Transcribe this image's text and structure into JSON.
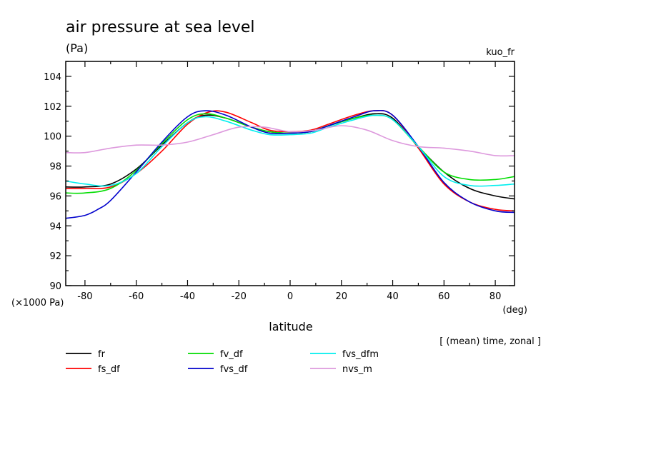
{
  "chart_data": {
    "type": "line",
    "title": "air pressure at sea level",
    "unit_label": "(Pa)",
    "run_label": "kuo_fr",
    "scale_label": "(×1000 Pa)",
    "xlabel": "latitude",
    "xunit": "(deg)",
    "subtitle": "[ (mean) time, zonal ]",
    "xlim": [
      -87.5,
      87.5
    ],
    "ylim": [
      90,
      105
    ],
    "xticks": [
      -80,
      -60,
      -40,
      -20,
      0,
      20,
      40,
      60,
      80
    ],
    "xtick_labels": [
      "-80",
      "-60",
      "-40",
      "-20",
      "0",
      "20",
      "40",
      "60",
      "80"
    ],
    "yticks": [
      90,
      92,
      94,
      96,
      98,
      100,
      102,
      104
    ],
    "ytick_labels": [
      "90",
      "92",
      "94",
      "96",
      "98",
      "100",
      "102",
      "104"
    ],
    "grid": false,
    "legend_position": "bottom",
    "series": [
      {
        "name": "fr",
        "color": "#000000",
        "x": [
          -87.5,
          -80,
          -70,
          -60,
          -50,
          -40,
          -33,
          -25,
          -15,
          -8,
          0,
          8,
          15,
          25,
          33,
          40,
          50,
          60,
          70,
          80,
          87.5
        ],
        "y": [
          96.6,
          96.6,
          96.8,
          97.8,
          99.4,
          100.9,
          101.4,
          101.2,
          100.6,
          100.3,
          100.2,
          100.3,
          100.7,
          101.2,
          101.5,
          101.2,
          99.3,
          97.6,
          96.5,
          96.0,
          95.8
        ]
      },
      {
        "name": "fs_df",
        "color": "#ff0000",
        "x": [
          -87.5,
          -80,
          -70,
          -60,
          -50,
          -40,
          -32,
          -25,
          -15,
          -8,
          0,
          8,
          15,
          25,
          33,
          40,
          50,
          60,
          70,
          80,
          87.5
        ],
        "y": [
          96.5,
          96.5,
          96.6,
          97.5,
          99.0,
          100.8,
          101.6,
          101.6,
          100.9,
          100.4,
          100.3,
          100.4,
          100.8,
          101.4,
          101.7,
          101.4,
          99.2,
          96.8,
          95.6,
          95.1,
          95.0
        ]
      },
      {
        "name": "fv_df",
        "color": "#00dd00",
        "x": [
          -87.5,
          -80,
          -70,
          -60,
          -50,
          -40,
          -33,
          -25,
          -15,
          -8,
          0,
          8,
          15,
          25,
          33,
          40,
          50,
          60,
          70,
          80,
          87.5
        ],
        "y": [
          96.2,
          96.2,
          96.5,
          97.7,
          99.5,
          101.1,
          101.5,
          101.2,
          100.6,
          100.3,
          100.2,
          100.3,
          100.7,
          101.2,
          101.4,
          101.1,
          99.3,
          97.6,
          97.1,
          97.1,
          97.3
        ]
      },
      {
        "name": "fvs_df",
        "color": "#0000cc",
        "x": [
          -87.5,
          -80,
          -75,
          -70,
          -60,
          -50,
          -40,
          -33,
          -25,
          -15,
          -8,
          0,
          8,
          15,
          25,
          33,
          40,
          50,
          60,
          70,
          80,
          87.5
        ],
        "y": [
          94.5,
          94.7,
          95.1,
          95.7,
          97.6,
          99.6,
          101.3,
          101.7,
          101.4,
          100.6,
          100.2,
          100.2,
          100.3,
          100.7,
          101.3,
          101.7,
          101.4,
          99.3,
          96.9,
          95.6,
          95.0,
          94.9
        ]
      },
      {
        "name": "fvs_dfm",
        "color": "#00eeee",
        "x": [
          -87.5,
          -80,
          -70,
          -60,
          -50,
          -40,
          -33,
          -25,
          -15,
          -8,
          0,
          8,
          15,
          25,
          33,
          40,
          50,
          60,
          70,
          80,
          87.5
        ],
        "y": [
          97.0,
          96.8,
          96.7,
          97.5,
          99.3,
          100.9,
          101.3,
          101.0,
          100.4,
          100.1,
          100.1,
          100.2,
          100.6,
          101.1,
          101.4,
          101.1,
          99.3,
          97.3,
          96.7,
          96.7,
          96.8
        ]
      },
      {
        "name": "nvs_m",
        "color": "#dd99dd",
        "x": [
          -87.5,
          -80,
          -70,
          -60,
          -50,
          -40,
          -30,
          -20,
          -10,
          0,
          10,
          20,
          30,
          40,
          50,
          60,
          70,
          80,
          87.5
        ],
        "y": [
          98.9,
          98.9,
          99.2,
          99.4,
          99.4,
          99.6,
          100.1,
          100.6,
          100.6,
          100.3,
          100.4,
          100.7,
          100.4,
          99.7,
          99.3,
          99.2,
          99.0,
          98.7,
          98.7
        ]
      }
    ]
  }
}
